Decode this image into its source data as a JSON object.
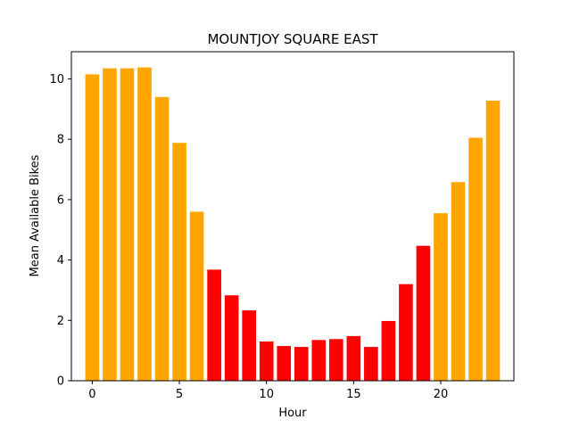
{
  "chart_data": {
    "type": "bar",
    "title": "MOUNTJOY SQUARE EAST",
    "xlabel": "Hour",
    "ylabel": "Mean Available Bikes",
    "xlim": [
      -1.2,
      24.2
    ],
    "ylim": [
      0,
      10.9
    ],
    "xticks": [
      0,
      5,
      10,
      15,
      20
    ],
    "yticks": [
      0,
      2,
      4,
      6,
      8,
      10
    ],
    "grid": false,
    "x": [
      0,
      1,
      2,
      3,
      4,
      5,
      6,
      7,
      8,
      9,
      10,
      11,
      12,
      13,
      14,
      15,
      16,
      17,
      18,
      19,
      20,
      21,
      22,
      23
    ],
    "values": [
      10.15,
      10.35,
      10.35,
      10.38,
      9.4,
      7.88,
      5.6,
      3.68,
      2.83,
      2.33,
      1.3,
      1.15,
      1.12,
      1.35,
      1.38,
      1.48,
      1.12,
      1.98,
      3.2,
      4.47,
      5.55,
      6.58,
      8.05,
      9.28
    ],
    "colors": [
      "#ffa500",
      "#ffa500",
      "#ffa500",
      "#ffa500",
      "#ffa500",
      "#ffa500",
      "#ffa500",
      "#ff0000",
      "#ff0000",
      "#ff0000",
      "#ff0000",
      "#ff0000",
      "#ff0000",
      "#ff0000",
      "#ff0000",
      "#ff0000",
      "#ff0000",
      "#ff0000",
      "#ff0000",
      "#ff0000",
      "#ffa500",
      "#ffa500",
      "#ffa500",
      "#ffa500"
    ]
  }
}
